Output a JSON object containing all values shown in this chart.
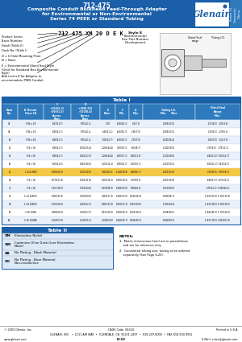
{
  "title_line1": "712-475",
  "title_line2": "Composite Conduit Bulkhead Feed-Through Adapter",
  "title_line3": "for Environmental or Non-Environmental",
  "title_line4": "Series 74 PEEK or Standard Tubing",
  "header_bg": "#1a5fa8",
  "header_text": "#ffffff",
  "table1_title": "Table I",
  "table2_title": "Table II",
  "table2_data": [
    [
      "XM",
      "Electroless Nickel"
    ],
    [
      "XW",
      "Cadmium Olive Drab Over Electroless\nNickel"
    ],
    [
      "XB",
      "No Plating - Black Material"
    ],
    [
      "XO",
      "No Plating - Base Material\nNon-conductive"
    ]
  ],
  "part_number_example": "712 475 XM 20 D E K",
  "side_tab_text": "Series 74\nComposite\nTubing",
  "bg_white": "#ffffff",
  "bg_blue_light": "#dce9f7",
  "bg_blue_dark": "#1a5fa8",
  "table_row_alt": "#e8f0fb",
  "table_header_bg": "#2e7abd",
  "orange_highlight": "#f5c842"
}
